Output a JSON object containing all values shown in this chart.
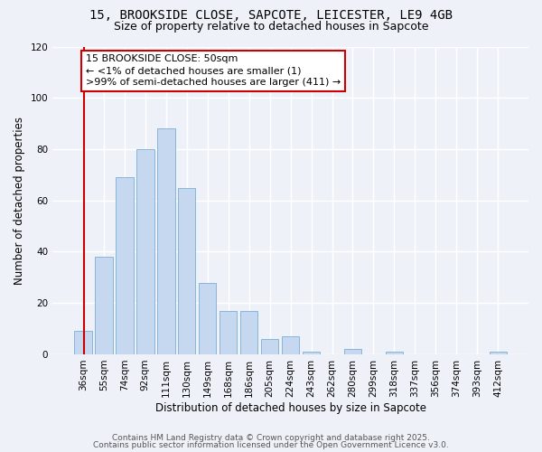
{
  "title1": "15, BROOKSIDE CLOSE, SAPCOTE, LEICESTER, LE9 4GB",
  "title2": "Size of property relative to detached houses in Sapcote",
  "xlabel": "Distribution of detached houses by size in Sapcote",
  "ylabel": "Number of detached properties",
  "categories": [
    "36sqm",
    "55sqm",
    "74sqm",
    "92sqm",
    "111sqm",
    "130sqm",
    "149sqm",
    "168sqm",
    "186sqm",
    "205sqm",
    "224sqm",
    "243sqm",
    "262sqm",
    "280sqm",
    "299sqm",
    "318sqm",
    "337sqm",
    "356sqm",
    "374sqm",
    "393sqm",
    "412sqm"
  ],
  "values": [
    9,
    38,
    69,
    80,
    88,
    65,
    28,
    17,
    17,
    6,
    7,
    1,
    0,
    2,
    0,
    1,
    0,
    0,
    0,
    0,
    1
  ],
  "bar_color": "#c5d8f0",
  "bar_edge_color": "#7aafd4",
  "annotation_line1": "15 BROOKSIDE CLOSE: 50sqm",
  "annotation_line2": "← <1% of detached houses are smaller (1)",
  "annotation_line3": ">99% of semi-detached houses are larger (411) →",
  "annotation_box_color": "#ffffff",
  "annotation_box_edge_color": "#cc0000",
  "marker_line_color": "#cc0000",
  "ylim": [
    0,
    120
  ],
  "yticks": [
    0,
    20,
    40,
    60,
    80,
    100,
    120
  ],
  "footnote1": "Contains HM Land Registry data © Crown copyright and database right 2025.",
  "footnote2": "Contains public sector information licensed under the Open Government Licence v3.0.",
  "bg_color": "#eef2f8",
  "plot_bg_color": "#eef2f8",
  "grid_color": "#ffffff",
  "title_fontsize": 10,
  "subtitle_fontsize": 9,
  "label_fontsize": 8.5,
  "tick_fontsize": 7.5,
  "annotation_fontsize": 8,
  "footnote_fontsize": 6.5
}
